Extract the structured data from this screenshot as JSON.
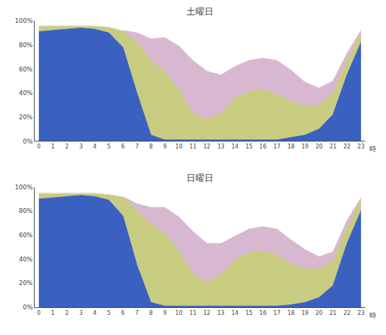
{
  "chart_data": [
    {
      "type": "area",
      "stacked": true,
      "grid": false,
      "title": "土曜日",
      "xlabel": "時",
      "x": [
        0,
        1,
        2,
        3,
        4,
        5,
        6,
        7,
        8,
        9,
        10,
        11,
        12,
        13,
        14,
        15,
        16,
        17,
        18,
        19,
        20,
        21,
        22,
        23
      ],
      "xlim": [
        -0.3,
        23.3
      ],
      "xticks": [
        0,
        1,
        2,
        3,
        4,
        5,
        6,
        7,
        8,
        9,
        10,
        11,
        12,
        13,
        14,
        15,
        16,
        17,
        18,
        19,
        20,
        21,
        22,
        23
      ],
      "ylim": [
        0,
        100
      ],
      "yticks": [
        {
          "value": 0,
          "label": "0%"
        },
        {
          "value": 20,
          "label": "20%"
        },
        {
          "value": 40,
          "label": "40%"
        },
        {
          "value": 60,
          "label": "60%"
        },
        {
          "value": 80,
          "label": "80%"
        },
        {
          "value": 100,
          "label": "100%"
        }
      ],
      "series": [
        {
          "color": "#3a60c0",
          "values": [
            91,
            92,
            93,
            94,
            93,
            90,
            78,
            40,
            5,
            1,
            1,
            1,
            1,
            1,
            1,
            1,
            1,
            1,
            3,
            5,
            10,
            22,
            55,
            82
          ]
        },
        {
          "color": "#c8cc80",
          "values": [
            5,
            4,
            3,
            2,
            3,
            5,
            14,
            42,
            62,
            57,
            42,
            22,
            17,
            22,
            35,
            40,
            42,
            38,
            30,
            24,
            20,
            18,
            12,
            7
          ]
        },
        {
          "color": "#d8b8d0",
          "values": [
            0,
            0,
            0,
            0,
            0,
            0,
            0,
            8,
            18,
            28,
            36,
            44,
            40,
            32,
            26,
            26,
            26,
            28,
            26,
            20,
            14,
            10,
            6,
            3
          ]
        },
        {
          "color": "#ffffff",
          "values": [
            0,
            0,
            0,
            0,
            0,
            0,
            0,
            5,
            10,
            10,
            15,
            28,
            38,
            42,
            32,
            28,
            25,
            28,
            36,
            46,
            52,
            40,
            20,
            5
          ]
        }
      ]
    },
    {
      "type": "area",
      "stacked": true,
      "grid": false,
      "title": "日曜日",
      "xlabel": "時",
      "x": [
        0,
        1,
        2,
        3,
        4,
        5,
        6,
        7,
        8,
        9,
        10,
        11,
        12,
        13,
        14,
        15,
        16,
        17,
        18,
        19,
        20,
        21,
        22,
        23
      ],
      "xlim": [
        -0.3,
        23.3
      ],
      "xticks": [
        0,
        1,
        2,
        3,
        4,
        5,
        6,
        7,
        8,
        9,
        10,
        11,
        12,
        13,
        14,
        15,
        16,
        17,
        18,
        19,
        20,
        21,
        22,
        23
      ],
      "ylim": [
        0,
        100
      ],
      "yticks": [
        {
          "value": 0,
          "label": "0%"
        },
        {
          "value": 20,
          "label": "20%"
        },
        {
          "value": 40,
          "label": "40%"
        },
        {
          "value": 60,
          "label": "60%"
        },
        {
          "value": 80,
          "label": "80%"
        },
        {
          "value": 100,
          "label": "100%"
        }
      ],
      "series": [
        {
          "color": "#3a60c0",
          "values": [
            90,
            91,
            92,
            93,
            92,
            89,
            76,
            35,
            4,
            1,
            1,
            1,
            1,
            1,
            1,
            1,
            1,
            1,
            2,
            4,
            8,
            18,
            53,
            80
          ]
        },
        {
          "color": "#c8cc80",
          "values": [
            5,
            4,
            3,
            2,
            3,
            5,
            16,
            45,
            65,
            60,
            46,
            26,
            20,
            26,
            38,
            44,
            46,
            42,
            34,
            28,
            24,
            20,
            14,
            8
          ]
        },
        {
          "color": "#d8b8d0",
          "values": [
            0,
            0,
            0,
            0,
            0,
            0,
            0,
            6,
            14,
            22,
            28,
            36,
            32,
            26,
            20,
            20,
            20,
            22,
            20,
            16,
            10,
            8,
            5,
            3
          ]
        },
        {
          "color": "#ffffff",
          "values": [
            0,
            0,
            0,
            0,
            0,
            0,
            0,
            8,
            12,
            12,
            18,
            32,
            44,
            46,
            38,
            32,
            30,
            32,
            42,
            50,
            58,
            46,
            22,
            6
          ]
        }
      ]
    }
  ]
}
